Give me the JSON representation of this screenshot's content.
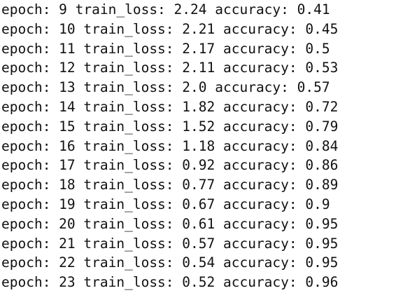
{
  "log_lines": [
    "epoch: 9 train_loss: 2.24 accuracy: 0.41",
    "epoch: 10 train_loss: 2.21 accuracy: 0.45",
    "epoch: 11 train_loss: 2.17 accuracy: 0.5",
    "epoch: 12 train_loss: 2.11 accuracy: 0.53",
    "epoch: 13 train_loss: 2.0 accuracy: 0.57",
    "epoch: 14 train_loss: 1.82 accuracy: 0.72",
    "epoch: 15 train_loss: 1.52 accuracy: 0.79",
    "epoch: 16 train_loss: 1.18 accuracy: 0.84",
    "epoch: 17 train_loss: 0.92 accuracy: 0.86",
    "epoch: 18 train_loss: 0.77 accuracy: 0.89",
    "epoch: 19 train_loss: 0.67 accuracy: 0.9",
    "epoch: 20 train_loss: 0.61 accuracy: 0.95",
    "epoch: 21 train_loss: 0.57 accuracy: 0.95",
    "epoch: 22 train_loss: 0.54 accuracy: 0.95",
    "epoch: 23 train_loss: 0.52 accuracy: 0.96"
  ]
}
